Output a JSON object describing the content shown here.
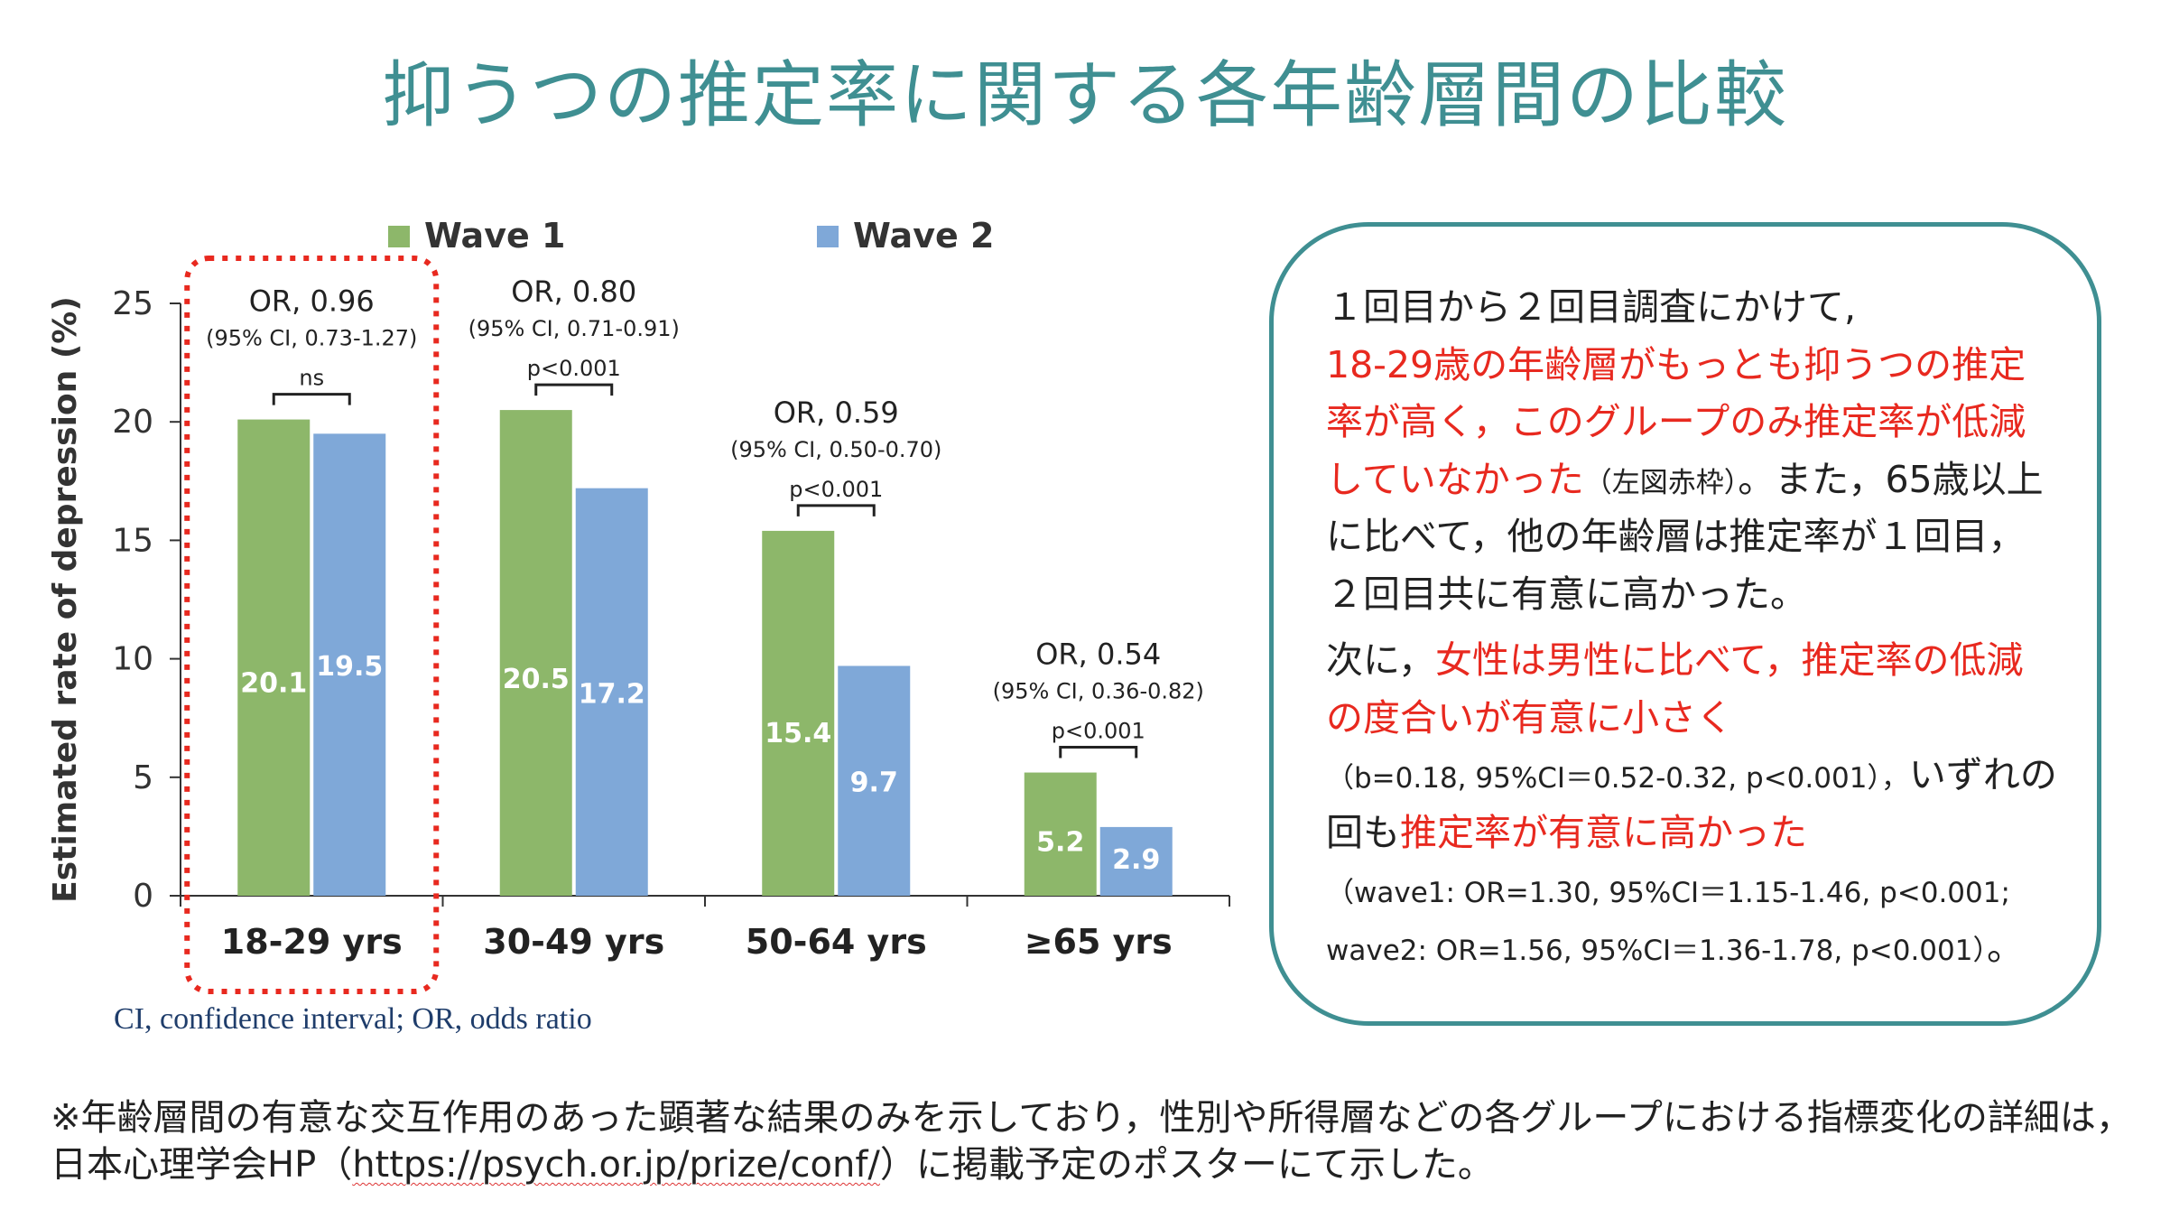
{
  "title": "抑うつの推定率に関する各年齢層間の比較",
  "colors": {
    "title": "#3f8f92",
    "wave1": "#8db76a",
    "wave2": "#7fa8d8",
    "highlight": "#e8291f",
    "panel_border": "#3f8f92"
  },
  "chart_data": {
    "type": "bar",
    "ylabel": "Estimated rate of depression (%)",
    "xlabel": "",
    "ylim": [
      0,
      25
    ],
    "yticks": [
      "0",
      "5",
      "10",
      "15",
      "20",
      "25"
    ],
    "categories": [
      "18-29 yrs",
      "30-49 yrs",
      "50-64 yrs",
      "≥65 yrs"
    ],
    "legend": [
      "Wave 1",
      "Wave 2"
    ],
    "legend_position": "top",
    "grid": false,
    "series": [
      {
        "name": "Wave 1",
        "values": [
          20.1,
          20.5,
          15.4,
          5.2
        ],
        "labels": [
          "20.1",
          "20.5",
          "15.4",
          "5.2"
        ]
      },
      {
        "name": "Wave 2",
        "values": [
          19.5,
          17.2,
          9.7,
          2.9
        ],
        "labels": [
          "19.5",
          "17.2",
          "9.7",
          "2.9"
        ]
      }
    ],
    "annotations": [
      {
        "or": "OR, 0.96",
        "ci": "(95% CI, 0.73-1.27)",
        "sig": "ns"
      },
      {
        "or": "OR, 0.80",
        "ci": "(95% CI, 0.71-0.91)",
        "sig": "p<0.001"
      },
      {
        "or": "OR, 0.59",
        "ci": "(95% CI, 0.50-0.70)",
        "sig": "p<0.001"
      },
      {
        "or": "OR, 0.54",
        "ci": "(95% CI, 0.36-0.82)",
        "sig": "p<0.001"
      }
    ],
    "highlighted_category": "18-29 yrs"
  },
  "chart_footnote": "CI, confidence interval; OR, odds ratio",
  "panel": {
    "p1_a": "１回目から２回目調査にかけて,",
    "p1_red_a": "18-29歳の年齢層がもっとも抑うつの推定率が高く，このグループのみ推定率が低減していなかった",
    "p1_small": "（左図赤枠）",
    "p1_b": "。また，65歳以上に比べて，他の年齢層は推定率が１回目，２回目共に有意に高かった。",
    "p2_a": "次に，",
    "p2_red_a": "女性は男性に比べて，推定率の低減の度合いが有意に小さく",
    "p2_small_a": "（b=0.18, 95%CI＝0.52-0.32, p<0.001），",
    "p2_b": "いずれの回も",
    "p2_red_b": "推定率が有意に高かった",
    "p2_small_b": "（wave1: OR=1.30, 95%CI＝1.15-1.46, p<0.001; wave2: OR=1.56, 95%CI＝1.36-1.78, p<0.001）",
    "p2_end": "。"
  },
  "bottom_note": {
    "before_link": "※年齢層間の有意な交互作用のあった顕著な結果のみを示しており，性別や所得層などの各グループにおける指標変化の詳細は，日本心理学会HP（",
    "link": "https://psych.or.jp/prize/conf/",
    "after_link": "）に掲載予定のポスターにて示した。"
  }
}
